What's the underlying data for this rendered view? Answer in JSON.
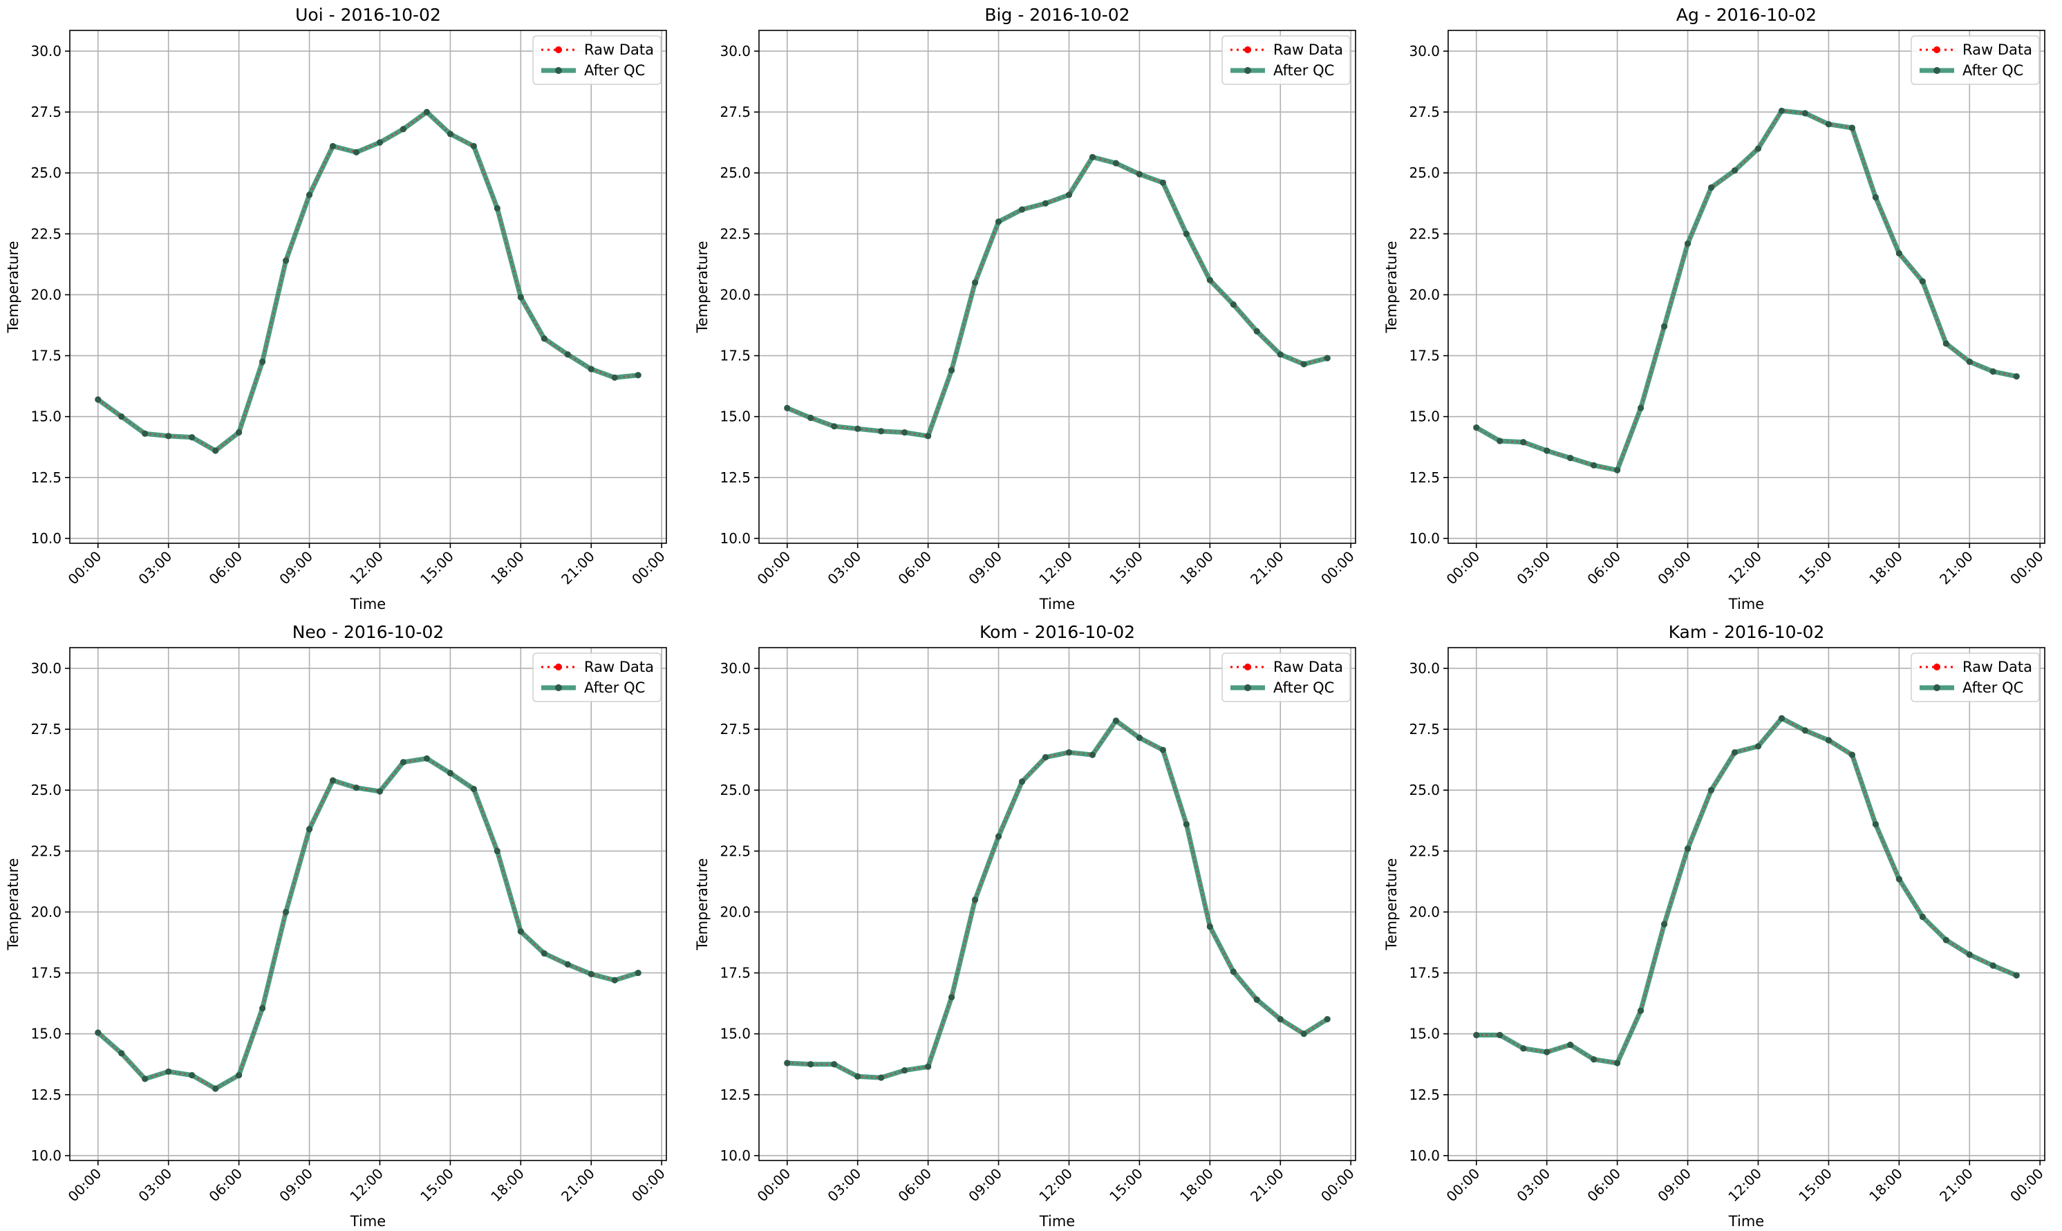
{
  "figure": {
    "background": "#ffffff",
    "raw_color": "#ff0000",
    "qc_color": "#2e8b6b",
    "marker_color": "#2f5a48",
    "grid_color": "#b0b0b0"
  },
  "chart_data": [
    {
      "type": "line",
      "title": "Uoi - 2016-10-02",
      "xlabel": "Time",
      "ylabel": "Temperature",
      "ylim": [
        10,
        30
      ],
      "yticks": [
        "10.0",
        "12.5",
        "15.0",
        "17.5",
        "20.0",
        "22.5",
        "25.0",
        "27.5",
        "30.0"
      ],
      "xticks": [
        "00:00",
        "03:00",
        "06:00",
        "09:00",
        "12:00",
        "15:00",
        "18:00",
        "21:00",
        "00:00"
      ],
      "grid": true,
      "legend": "top-right",
      "x": [
        "00:00",
        "01:00",
        "02:00",
        "03:00",
        "04:00",
        "05:00",
        "06:00",
        "07:00",
        "08:00",
        "09:00",
        "10:00",
        "11:00",
        "12:00",
        "13:00",
        "14:00",
        "15:00",
        "16:00",
        "17:00",
        "18:00",
        "19:00",
        "20:00",
        "21:00",
        "22:00",
        "23:00"
      ],
      "series": [
        {
          "name": "Raw Data",
          "values": [
            15.7,
            15.0,
            14.3,
            14.2,
            14.15,
            13.6,
            14.35,
            17.25,
            21.4,
            24.1,
            26.1,
            25.85,
            26.25,
            26.8,
            27.5,
            26.6,
            26.1,
            23.55,
            19.9,
            18.2,
            17.55,
            16.95,
            16.6,
            16.7
          ]
        },
        {
          "name": "After QC",
          "values": [
            15.7,
            15.0,
            14.3,
            14.2,
            14.15,
            13.6,
            14.35,
            17.25,
            21.4,
            24.1,
            26.1,
            25.85,
            26.25,
            26.8,
            27.5,
            26.6,
            26.1,
            23.55,
            19.9,
            18.2,
            17.55,
            16.95,
            16.6,
            16.7
          ]
        }
      ]
    },
    {
      "type": "line",
      "title": "Big - 2016-10-02",
      "xlabel": "Time",
      "ylabel": "Temperature",
      "ylim": [
        10,
        30
      ],
      "yticks": [
        "10.0",
        "12.5",
        "15.0",
        "17.5",
        "20.0",
        "22.5",
        "25.0",
        "27.5",
        "30.0"
      ],
      "xticks": [
        "00:00",
        "03:00",
        "06:00",
        "09:00",
        "12:00",
        "15:00",
        "18:00",
        "21:00",
        "00:00"
      ],
      "grid": true,
      "legend": "top-right",
      "x": [
        "00:00",
        "01:00",
        "02:00",
        "03:00",
        "04:00",
        "05:00",
        "06:00",
        "07:00",
        "08:00",
        "09:00",
        "10:00",
        "11:00",
        "12:00",
        "13:00",
        "14:00",
        "15:00",
        "16:00",
        "17:00",
        "18:00",
        "19:00",
        "20:00",
        "21:00",
        "22:00",
        "23:00"
      ],
      "series": [
        {
          "name": "Raw Data",
          "values": [
            15.35,
            14.95,
            14.6,
            14.5,
            14.4,
            14.35,
            14.2,
            16.9,
            20.5,
            23.0,
            23.5,
            23.75,
            24.1,
            25.65,
            25.4,
            24.95,
            24.6,
            22.5,
            20.6,
            19.6,
            18.5,
            17.55,
            17.15,
            17.4
          ]
        },
        {
          "name": "After QC",
          "values": [
            15.35,
            14.95,
            14.6,
            14.5,
            14.4,
            14.35,
            14.2,
            16.9,
            20.5,
            23.0,
            23.5,
            23.75,
            24.1,
            25.65,
            25.4,
            24.95,
            24.6,
            22.5,
            20.6,
            19.6,
            18.5,
            17.55,
            17.15,
            17.4
          ]
        }
      ]
    },
    {
      "type": "line",
      "title": "Ag - 2016-10-02",
      "xlabel": "Time",
      "ylabel": "Temperature",
      "ylim": [
        10,
        30
      ],
      "yticks": [
        "10.0",
        "12.5",
        "15.0",
        "17.5",
        "20.0",
        "22.5",
        "25.0",
        "27.5",
        "30.0"
      ],
      "xticks": [
        "00:00",
        "03:00",
        "06:00",
        "09:00",
        "12:00",
        "15:00",
        "18:00",
        "21:00",
        "00:00"
      ],
      "grid": true,
      "legend": "top-right",
      "x": [
        "00:00",
        "01:00",
        "02:00",
        "03:00",
        "04:00",
        "05:00",
        "06:00",
        "07:00",
        "08:00",
        "09:00",
        "10:00",
        "11:00",
        "12:00",
        "13:00",
        "14:00",
        "15:00",
        "16:00",
        "17:00",
        "18:00",
        "19:00",
        "20:00",
        "21:00",
        "22:00",
        "23:00"
      ],
      "series": [
        {
          "name": "Raw Data",
          "values": [
            14.55,
            14.0,
            13.95,
            13.6,
            13.3,
            13.0,
            12.8,
            15.35,
            18.7,
            22.1,
            24.4,
            25.1,
            26.0,
            27.55,
            27.45,
            27.0,
            26.85,
            24.0,
            21.7,
            20.55,
            18.0,
            17.25,
            16.85,
            16.65
          ]
        },
        {
          "name": "After QC",
          "values": [
            14.55,
            14.0,
            13.95,
            13.6,
            13.3,
            13.0,
            12.8,
            15.35,
            18.7,
            22.1,
            24.4,
            25.1,
            26.0,
            27.55,
            27.45,
            27.0,
            26.85,
            24.0,
            21.7,
            20.55,
            18.0,
            17.25,
            16.85,
            16.65
          ]
        }
      ]
    },
    {
      "type": "line",
      "title": "Neo - 2016-10-02",
      "xlabel": "Time",
      "ylabel": "Temperature",
      "ylim": [
        10,
        30
      ],
      "yticks": [
        "10.0",
        "12.5",
        "15.0",
        "17.5",
        "20.0",
        "22.5",
        "25.0",
        "27.5",
        "30.0"
      ],
      "xticks": [
        "00:00",
        "03:00",
        "06:00",
        "09:00",
        "12:00",
        "15:00",
        "18:00",
        "21:00",
        "00:00"
      ],
      "grid": true,
      "legend": "top-right",
      "x": [
        "00:00",
        "01:00",
        "02:00",
        "03:00",
        "04:00",
        "05:00",
        "06:00",
        "07:00",
        "08:00",
        "09:00",
        "10:00",
        "11:00",
        "12:00",
        "13:00",
        "14:00",
        "15:00",
        "16:00",
        "17:00",
        "18:00",
        "19:00",
        "20:00",
        "21:00",
        "22:00",
        "23:00"
      ],
      "series": [
        {
          "name": "Raw Data",
          "values": [
            15.05,
            14.2,
            13.15,
            13.45,
            13.3,
            12.75,
            13.3,
            16.05,
            20.0,
            23.4,
            25.4,
            25.1,
            24.95,
            26.15,
            26.3,
            25.7,
            25.05,
            22.5,
            19.2,
            18.3,
            17.85,
            17.45,
            17.2,
            17.5
          ]
        },
        {
          "name": "After QC",
          "values": [
            15.05,
            14.2,
            13.15,
            13.45,
            13.3,
            12.75,
            13.3,
            16.05,
            20.0,
            23.4,
            25.4,
            25.1,
            24.95,
            26.15,
            26.3,
            25.7,
            25.05,
            22.5,
            19.2,
            18.3,
            17.85,
            17.45,
            17.2,
            17.5
          ]
        }
      ]
    },
    {
      "type": "line",
      "title": "Kom - 2016-10-02",
      "xlabel": "Time",
      "ylabel": "Temperature",
      "ylim": [
        10,
        30
      ],
      "yticks": [
        "10.0",
        "12.5",
        "15.0",
        "17.5",
        "20.0",
        "22.5",
        "25.0",
        "27.5",
        "30.0"
      ],
      "xticks": [
        "00:00",
        "03:00",
        "06:00",
        "09:00",
        "12:00",
        "15:00",
        "18:00",
        "21:00",
        "00:00"
      ],
      "grid": true,
      "legend": "top-right",
      "x": [
        "00:00",
        "01:00",
        "02:00",
        "03:00",
        "04:00",
        "05:00",
        "06:00",
        "07:00",
        "08:00",
        "09:00",
        "10:00",
        "11:00",
        "12:00",
        "13:00",
        "14:00",
        "15:00",
        "16:00",
        "17:00",
        "18:00",
        "19:00",
        "20:00",
        "21:00",
        "22:00",
        "23:00"
      ],
      "series": [
        {
          "name": "Raw Data",
          "values": [
            13.8,
            13.75,
            13.75,
            13.25,
            13.2,
            13.5,
            13.65,
            16.5,
            20.5,
            23.1,
            25.35,
            26.35,
            26.55,
            26.45,
            27.85,
            27.15,
            26.65,
            23.6,
            19.4,
            17.55,
            16.4,
            15.6,
            15.0,
            15.6
          ]
        },
        {
          "name": "After QC",
          "values": [
            13.8,
            13.75,
            13.75,
            13.25,
            13.2,
            13.5,
            13.65,
            16.5,
            20.5,
            23.1,
            25.35,
            26.35,
            26.55,
            26.45,
            27.85,
            27.15,
            26.65,
            23.6,
            19.4,
            17.55,
            16.4,
            15.6,
            15.0,
            15.6
          ]
        }
      ]
    },
    {
      "type": "line",
      "title": "Kam - 2016-10-02",
      "xlabel": "Time",
      "ylabel": "Temperature",
      "ylim": [
        10,
        30
      ],
      "yticks": [
        "10.0",
        "12.5",
        "15.0",
        "17.5",
        "20.0",
        "22.5",
        "25.0",
        "27.5",
        "30.0"
      ],
      "xticks": [
        "00:00",
        "03:00",
        "06:00",
        "09:00",
        "12:00",
        "15:00",
        "18:00",
        "21:00",
        "00:00"
      ],
      "grid": true,
      "legend": "top-right",
      "x": [
        "00:00",
        "01:00",
        "02:00",
        "03:00",
        "04:00",
        "05:00",
        "06:00",
        "07:00",
        "08:00",
        "09:00",
        "10:00",
        "11:00",
        "12:00",
        "13:00",
        "14:00",
        "15:00",
        "16:00",
        "17:00",
        "18:00",
        "19:00",
        "20:00",
        "21:00",
        "22:00",
        "23:00"
      ],
      "series": [
        {
          "name": "Raw Data",
          "values": [
            14.95,
            14.95,
            14.4,
            14.25,
            14.55,
            13.95,
            13.8,
            15.95,
            19.5,
            22.6,
            25.0,
            26.55,
            26.8,
            27.95,
            27.45,
            27.05,
            26.45,
            23.6,
            21.35,
            19.8,
            18.85,
            18.25,
            17.8,
            17.4
          ]
        },
        {
          "name": "After QC",
          "values": [
            14.95,
            14.95,
            14.4,
            14.25,
            14.55,
            13.95,
            13.8,
            15.95,
            19.5,
            22.6,
            25.0,
            26.55,
            26.8,
            27.95,
            27.45,
            27.05,
            26.45,
            23.6,
            21.35,
            19.8,
            18.85,
            18.25,
            17.8,
            17.4
          ]
        }
      ]
    }
  ]
}
